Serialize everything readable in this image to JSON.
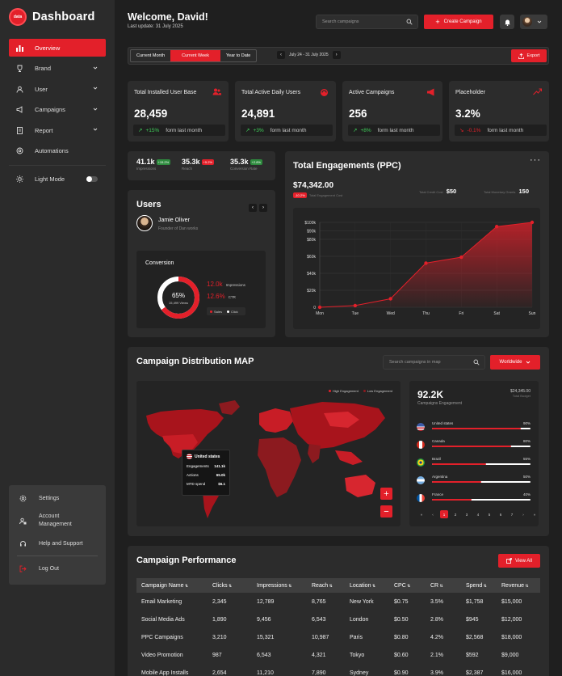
{
  "app": {
    "title": "Dashboard",
    "logo_text": "data"
  },
  "sidebar": {
    "items": [
      {
        "label": "Overview",
        "icon": "bar-chart-icon",
        "active": true,
        "chevron": false
      },
      {
        "label": "Brand",
        "icon": "trophy-icon",
        "active": false,
        "chevron": true
      },
      {
        "label": "User",
        "icon": "user-icon",
        "active": false,
        "chevron": true
      },
      {
        "label": "Campaigns",
        "icon": "megaphone-icon",
        "active": false,
        "chevron": true
      },
      {
        "label": "Report",
        "icon": "document-icon",
        "active": false,
        "chevron": true
      },
      {
        "label": "Automations",
        "icon": "gears-icon",
        "active": false,
        "chevron": false
      }
    ],
    "light_mode_label": "Light Mode",
    "bottom": {
      "settings": "Settings",
      "account": "Account Management",
      "help": "Help and Support",
      "logout": "Log Out"
    }
  },
  "header": {
    "welcome": "Welcome, David!",
    "last_update": "Last update: 31 July 2025",
    "search_placeholder": "Search campaigns",
    "create_label": "Create Campaign"
  },
  "filters": {
    "tabs": [
      "Current Month",
      "Current Week",
      "Year to Date"
    ],
    "active_tab": "Current Week",
    "date_range": "July 24 - 31 July 2025",
    "export_label": "Export"
  },
  "stats": [
    {
      "title": "Total Installed User Base",
      "value": "28,459",
      "change": "+15%",
      "note": "form last month",
      "trend": "up",
      "icon": "users-icon"
    },
    {
      "title": "Total Active Daily Users",
      "value": "24,891",
      "change": "+3%",
      "note": "form last month",
      "trend": "up",
      "icon": "cycle-icon"
    },
    {
      "title": "Active Campaigns",
      "value": "256",
      "change": "+8%",
      "note": "form last month",
      "trend": "up",
      "icon": "megaphone-icon"
    },
    {
      "title": "Placeholder",
      "value": "3.2%",
      "change": "-0.1%",
      "note": "form last month",
      "trend": "down",
      "icon": "trend-up-icon"
    }
  ],
  "mini_stats": [
    {
      "value": "41.1k",
      "badge": "+15.2%",
      "label": "Impressions",
      "trend": "up"
    },
    {
      "value": "35.3k",
      "badge": "+5.2%",
      "label": "Reach",
      "trend": "down"
    },
    {
      "value": "35.3k",
      "badge": "+2.8%",
      "label": "Conversion Rate",
      "trend": "up"
    }
  ],
  "users_card": {
    "title": "Users",
    "user_name": "Jamie Oliver",
    "user_role": "Founder of Dan works",
    "conversion_title": "Conversion",
    "donut_pct": "65%",
    "donut_pct_value": 0.65,
    "donut_sub": "15,499 Views",
    "impressions_val": "12.0k",
    "impressions_label": "Impressions",
    "ctr_val": "12.6%",
    "ctr_label": "CTR",
    "legend_sales": "Sales",
    "legend_click": "Click"
  },
  "engagement": {
    "title": "Total Engagements (PPC)",
    "amount": "$74,342.00",
    "badge": "-10.2%",
    "badge_label": "Total Engagement Cost",
    "credit_label": "Total Credit Cost",
    "credit_value": "$50",
    "ads_label": "Total Monetary Grants",
    "ads_value": "150"
  },
  "chart_data": {
    "type": "area",
    "title": "Total Engagements (PPC)",
    "categories": [
      "Mon",
      "Tue",
      "Wed",
      "Thu",
      "Fri",
      "Sat",
      "Sun"
    ],
    "series": [
      {
        "values": [
          0,
          2000,
          10000,
          52000,
          59000,
          95000,
          100000
        ]
      }
    ],
    "y_ticks": [
      "0",
      "$20k",
      "$40k",
      "$60k",
      "$80k",
      "$90k",
      "$100k"
    ],
    "y_tick_values": [
      0,
      20000,
      40000,
      60000,
      80000,
      90000,
      100000
    ],
    "ylim": [
      0,
      100000
    ],
    "grid": true,
    "color": "#e3202a"
  },
  "map": {
    "title": "Campaign Distribution MAP",
    "search_placeholder": "Search campaigns in map",
    "region_label": "Worldwide",
    "legend_high": "High Engagement",
    "legend_low": "Low Engagement",
    "tooltip": {
      "country": "United states",
      "rows": [
        {
          "k": "Engagements",
          "v": "141.1k"
        },
        {
          "k": "Actions",
          "v": "65.0k"
        },
        {
          "k": "MTD spend",
          "v": "$6.1"
        }
      ]
    },
    "kpi_value": "92.2K",
    "kpi_label": "Campaigns Engagement",
    "kpi_spend": "$24,345.00",
    "kpi_spend_label": "Total Budget",
    "countries": [
      {
        "name": "United states",
        "pct": "90%",
        "value": 0.9,
        "flag": "us-flag-icon"
      },
      {
        "name": "Canada",
        "pct": "80%",
        "value": 0.8,
        "flag": "canada-flag-icon"
      },
      {
        "name": "Brazil",
        "pct": "55%",
        "value": 0.55,
        "flag": "brazil-flag-icon"
      },
      {
        "name": "Argentina",
        "pct": "50%",
        "value": 0.5,
        "flag": "argentina-flag-icon"
      },
      {
        "name": "France",
        "pct": "40%",
        "value": 0.4,
        "flag": "france-flag-icon"
      }
    ],
    "pages": [
      "«",
      "‹",
      "1",
      "2",
      "3",
      "4",
      "5",
      "6",
      "7",
      "›",
      "»"
    ],
    "active_page": "1"
  },
  "performance": {
    "title": "Campaign Performance",
    "view_all": "View All",
    "columns": [
      "Campaign Name",
      "Clicks",
      "Impressions",
      "Reach",
      "Location",
      "CPC",
      "CR",
      "Spend",
      "Revenue"
    ],
    "rows": [
      [
        "Email Marketing",
        "2,345",
        "12,789",
        "8,765",
        "New York",
        "$0.75",
        "3.5%",
        "$1,758",
        "$15,000"
      ],
      [
        "Social Media Ads",
        "1,890",
        "9,456",
        "6,543",
        "London",
        "$0.50",
        "2.8%",
        "$945",
        "$12,000"
      ],
      [
        "PPC Campaigns",
        "3,210",
        "15,321",
        "10,987",
        "Paris",
        "$0.80",
        "4.2%",
        "$2,568",
        "$18,000"
      ],
      [
        "Video Promotion",
        "987",
        "6,543",
        "4,321",
        "Tokyo",
        "$0.60",
        "2.1%",
        "$592",
        "$9,000"
      ],
      [
        "Mobile App Installs",
        "2,654",
        "11,210",
        "7,890",
        "Sydney",
        "$0.90",
        "3.9%",
        "$2,387",
        "$16,000"
      ]
    ]
  }
}
